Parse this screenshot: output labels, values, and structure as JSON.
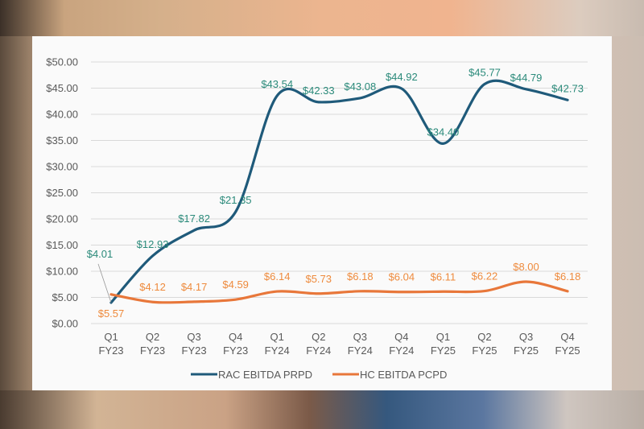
{
  "chart_data": {
    "type": "line",
    "categories": [
      [
        "Q1",
        "FY23"
      ],
      [
        "Q2",
        "FY23"
      ],
      [
        "Q3",
        "FY23"
      ],
      [
        "Q4",
        "FY23"
      ],
      [
        "Q1",
        "FY24"
      ],
      [
        "Q2",
        "FY24"
      ],
      [
        "Q3",
        "FY24"
      ],
      [
        "Q4",
        "FY24"
      ],
      [
        "Q1",
        "FY25"
      ],
      [
        "Q2",
        "FY25"
      ],
      [
        "Q3",
        "FY25"
      ],
      [
        "Q4",
        "FY25"
      ]
    ],
    "ylim": [
      0,
      50
    ],
    "yticks": [
      "$0.00",
      "$5.00",
      "$10.00",
      "$15.00",
      "$20.00",
      "$25.00",
      "$30.00",
      "$35.00",
      "$40.00",
      "$45.00",
      "$50.00"
    ],
    "grid": true,
    "legend": "bottom",
    "series": [
      {
        "name": "RAC EBITDA PRPD",
        "color": "#1f5a7a",
        "label_color": "#2a8a7a",
        "values": [
          4.01,
          12.93,
          17.82,
          21.35,
          43.54,
          42.33,
          43.08,
          44.92,
          34.4,
          45.77,
          44.79,
          42.73
        ],
        "labels": [
          "$4.01",
          "$12.93",
          "$17.82",
          "$21.35",
          "$43.54",
          "$42.33",
          "$43.08",
          "$44.92",
          "$34.40",
          "$45.77",
          "$44.79",
          "$42.73"
        ]
      },
      {
        "name": "HC EBITDA PCPD",
        "color": "#e8773a",
        "label_color": "#ee8a3c",
        "values": [
          5.57,
          4.12,
          4.17,
          4.59,
          6.14,
          5.73,
          6.18,
          6.04,
          6.11,
          6.22,
          8.0,
          6.18
        ],
        "labels": [
          "$5.57",
          "$4.12",
          "$4.17",
          "$4.59",
          "$6.14",
          "$5.73",
          "$6.18",
          "$6.04",
          "$6.11",
          "$6.22",
          "$8.00",
          "$6.18"
        ]
      }
    ]
  }
}
